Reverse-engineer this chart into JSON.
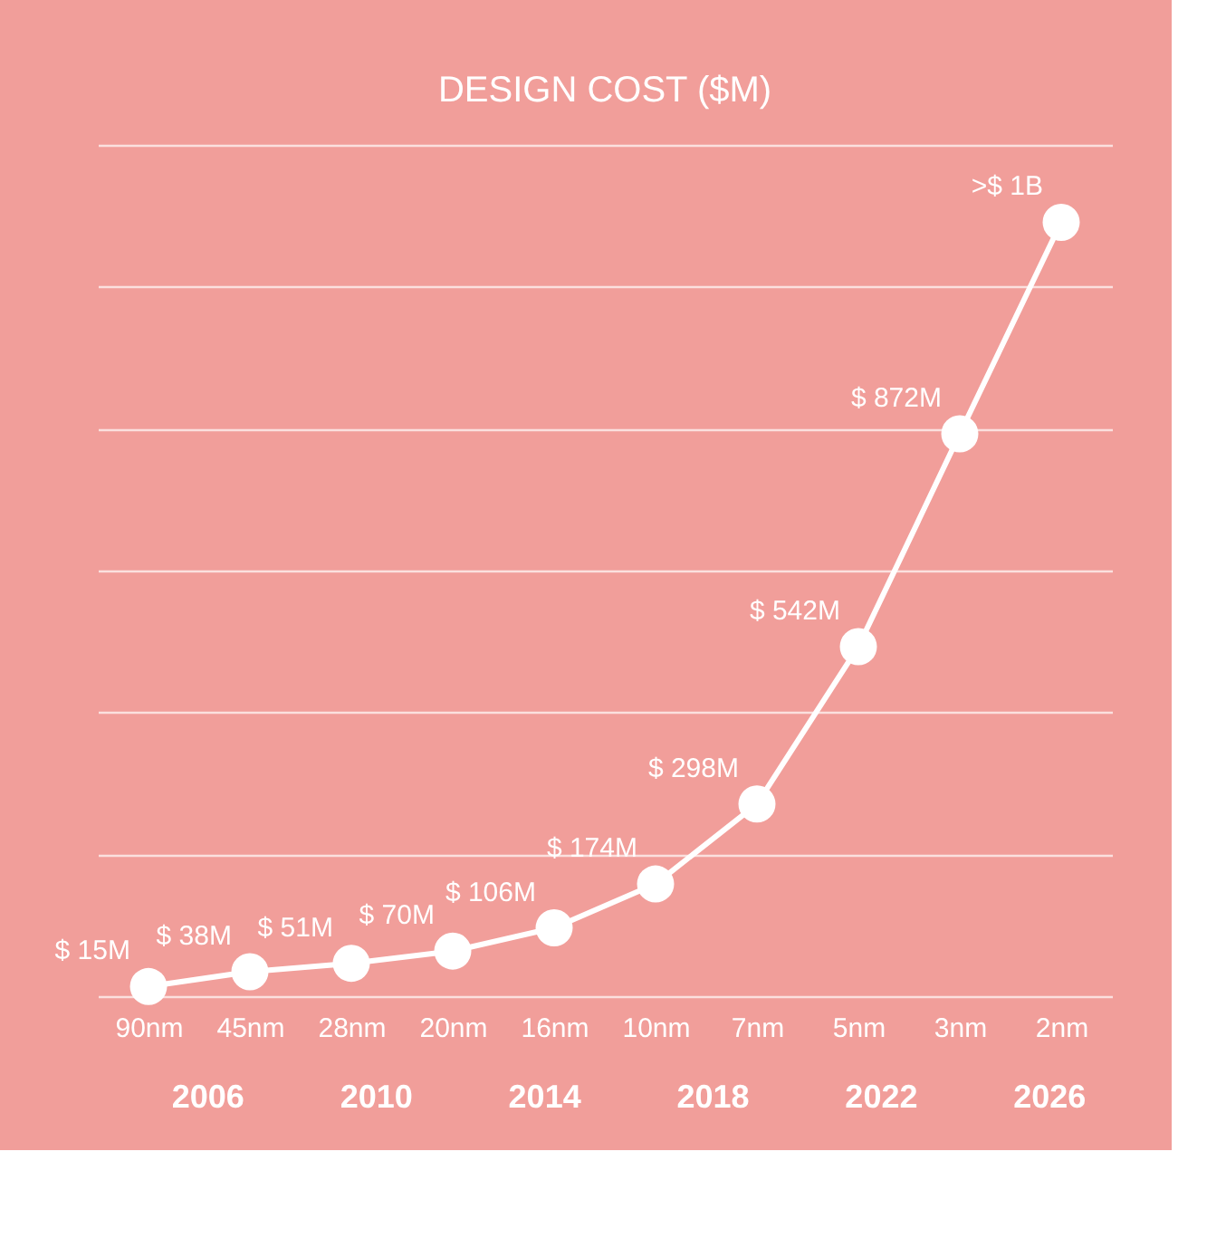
{
  "chart_data": {
    "type": "line",
    "title": "DESIGN COST ($M)",
    "categories": [
      "90nm",
      "45nm",
      "28nm",
      "20nm",
      "16nm",
      "10nm",
      "7nm",
      "5nm",
      "3nm",
      "2nm"
    ],
    "series": [
      {
        "color": "#ffffff",
        "values": [
          15,
          38,
          51,
          70,
          106,
          174,
          298,
          542,
          872,
          1200
        ],
        "value_labels": [
          "$ 15M",
          "$ 38M",
          "$ 51M",
          "$ 70M",
          "$ 106M",
          "$ 174M",
          "$ 298M",
          "$ 542M",
          "$ 872M",
          ">$ 1B"
        ]
      }
    ],
    "marker": "circle",
    "line_style": "solid",
    "ylim": [
      0,
      1320
    ],
    "yticks": [
      {
        "value": 0,
        "label": null
      },
      {
        "value": 220,
        "label": null
      },
      {
        "value": 440,
        "label": null
      },
      {
        "value": 660,
        "label": null
      },
      {
        "value": 880,
        "label": null
      },
      {
        "value": 1100,
        "label": null
      },
      {
        "value": 1320,
        "label": null
      }
    ],
    "x2lim": [
      2003.4,
      2027.5
    ],
    "x2ticks": [
      2006,
      2010,
      2014,
      2018,
      2022,
      2026
    ],
    "grid": "y",
    "tick_labels": "x"
  }
}
